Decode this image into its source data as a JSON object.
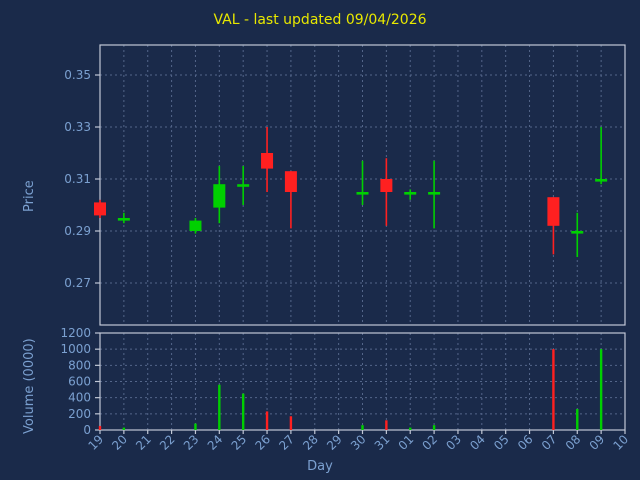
{
  "chart_data": {
    "type": "candlestick",
    "title": "VAL - last updated 09/04/2026",
    "xlabel": "Day",
    "ylabel_price": "Price",
    "ylabel_volume": "Volume (0000)",
    "legend": "none",
    "grid": "dashed",
    "price_ticks": [
      0.35,
      0.33,
      0.31,
      0.29,
      0.27
    ],
    "volume_ticks": [
      0,
      200,
      400,
      600,
      800,
      1000,
      1200
    ],
    "price_axis_range": [
      0.254,
      0.362
    ],
    "volume_axis_range": [
      0,
      1200
    ],
    "categories": [
      "19",
      "20",
      "21",
      "22",
      "23",
      "24",
      "25",
      "26",
      "27",
      "28",
      "29",
      "30",
      "31",
      "01",
      "02",
      "03",
      "04",
      "05",
      "06",
      "07",
      "08",
      "09",
      "10"
    ],
    "colors": {
      "up": "#00d000",
      "down": "#ff2020",
      "background": "#1a2a4a",
      "grid": "#54668a",
      "frame": "#c2c8d6",
      "text": "#7ba0d0",
      "title": "#e8e800"
    },
    "candles": [
      {
        "day": "19",
        "open": 0.301,
        "high": 0.302,
        "low": 0.295,
        "close": 0.296,
        "volume": 50
      },
      {
        "day": "20",
        "open": 0.294,
        "high": 0.297,
        "low": 0.293,
        "close": 0.295,
        "volume": 30
      },
      {
        "day": "23",
        "open": 0.29,
        "high": 0.295,
        "low": 0.289,
        "close": 0.294,
        "volume": 80
      },
      {
        "day": "24",
        "open": 0.299,
        "high": 0.315,
        "low": 0.293,
        "close": 0.308,
        "volume": 560
      },
      {
        "day": "25",
        "open": 0.307,
        "high": 0.315,
        "low": 0.3,
        "close": 0.308,
        "volume": 450
      },
      {
        "day": "26",
        "open": 0.32,
        "high": 0.33,
        "low": 0.305,
        "close": 0.314,
        "volume": 230
      },
      {
        "day": "27",
        "open": 0.313,
        "high": 0.313,
        "low": 0.291,
        "close": 0.305,
        "volume": 170
      },
      {
        "day": "30",
        "open": 0.304,
        "high": 0.317,
        "low": 0.3,
        "close": 0.305,
        "volume": 60
      },
      {
        "day": "31",
        "open": 0.31,
        "high": 0.318,
        "low": 0.292,
        "close": 0.305,
        "volume": 120
      },
      {
        "day": "01",
        "open": 0.304,
        "high": 0.306,
        "low": 0.302,
        "close": 0.305,
        "volume": 30
      },
      {
        "day": "02",
        "open": 0.304,
        "high": 0.317,
        "low": 0.291,
        "close": 0.305,
        "volume": 60
      },
      {
        "day": "07",
        "open": 0.303,
        "high": 0.303,
        "low": 0.281,
        "close": 0.292,
        "volume": 1000
      },
      {
        "day": "08",
        "open": 0.289,
        "high": 0.297,
        "low": 0.28,
        "close": 0.29,
        "volume": 260
      },
      {
        "day": "09",
        "open": 0.309,
        "high": 0.33,
        "low": 0.308,
        "close": 0.31,
        "volume": 1000
      }
    ]
  }
}
